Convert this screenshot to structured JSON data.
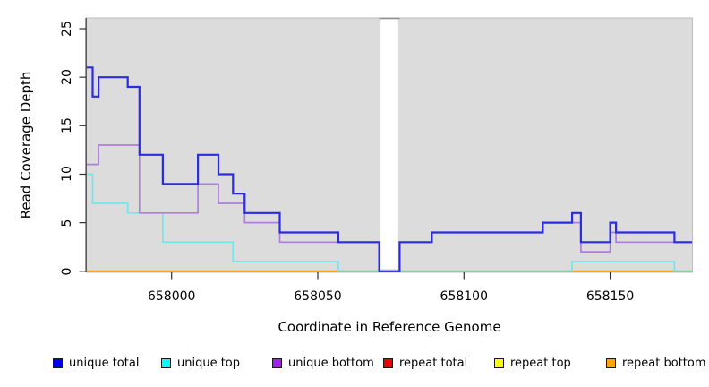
{
  "figure": {
    "xlabel": "Coordinate in Reference Genome",
    "ylabel": "Read Coverage Depth"
  },
  "chart_data": {
    "type": "line",
    "step": true,
    "title": "",
    "xlabel": "Coordinate in Reference Genome",
    "ylabel": "Read Coverage Depth",
    "xlim": [
      657971,
      658178
    ],
    "ylim": [
      0,
      26
    ],
    "grid": false,
    "plot_bg": "#dcdcdc",
    "zero_line_color": "#8ccb8c",
    "no_data_gap": {
      "from": 658071,
      "to": 658078
    },
    "x_ticks": [
      {
        "value": 658000,
        "label": "658000"
      },
      {
        "value": 658050,
        "label": "658050"
      },
      {
        "value": 658100,
        "label": "658100"
      },
      {
        "value": 658150,
        "label": "658150"
      }
    ],
    "y_ticks": [
      {
        "value": 0,
        "label": "0"
      },
      {
        "value": 5,
        "label": "5"
      },
      {
        "value": 10,
        "label": "10"
      },
      {
        "value": 15,
        "label": "15"
      },
      {
        "value": 20,
        "label": "20"
      },
      {
        "value": 25,
        "label": "25"
      }
    ],
    "series": [
      {
        "name": "unique total",
        "color": "#2b2bdf",
        "width": 2.2,
        "points": [
          [
            657971,
            21
          ],
          [
            657973,
            18
          ],
          [
            657975,
            20
          ],
          [
            657985,
            19
          ],
          [
            657989,
            12
          ],
          [
            657997,
            9
          ],
          [
            658009,
            12
          ],
          [
            658016,
            10
          ],
          [
            658021,
            8
          ],
          [
            658025,
            6
          ],
          [
            658037,
            4
          ],
          [
            658057,
            3
          ],
          [
            658071,
            0
          ],
          [
            658078,
            3
          ],
          [
            658089,
            4
          ],
          [
            658127,
            5
          ],
          [
            658137,
            6
          ],
          [
            658140,
            3
          ],
          [
            658150,
            5
          ],
          [
            658152,
            4
          ],
          [
            658172,
            3
          ],
          [
            658178,
            3
          ]
        ]
      },
      {
        "name": "unique top",
        "color": "#6fe8ec",
        "width": 1.7,
        "points": [
          [
            657971,
            10
          ],
          [
            657973,
            7
          ],
          [
            657985,
            6
          ],
          [
            657997,
            3
          ],
          [
            658021,
            1
          ],
          [
            658057,
            0
          ],
          [
            658137,
            1
          ],
          [
            658172,
            0
          ],
          [
            658178,
            0
          ]
        ]
      },
      {
        "name": "unique bottom",
        "color": "#ad7fda",
        "width": 1.7,
        "points": [
          [
            657971,
            11
          ],
          [
            657975,
            13
          ],
          [
            657989,
            6
          ],
          [
            658009,
            9
          ],
          [
            658016,
            7
          ],
          [
            658025,
            5
          ],
          [
            658037,
            3
          ],
          [
            658071,
            0
          ],
          [
            658078,
            3
          ],
          [
            658089,
            4
          ],
          [
            658127,
            5
          ],
          [
            658140,
            2
          ],
          [
            658150,
            4
          ],
          [
            658152,
            3
          ],
          [
            658178,
            3
          ]
        ]
      },
      {
        "name": "repeat total",
        "color": "#ee0000",
        "width": 1.5,
        "points": [
          [
            657971,
            0
          ],
          [
            658178,
            0
          ]
        ]
      },
      {
        "name": "repeat top",
        "color": "#ffff00",
        "width": 1.5,
        "points": [
          [
            657971,
            0
          ],
          [
            658178,
            0
          ]
        ]
      },
      {
        "name": "repeat bottom",
        "color": "#ffa216",
        "width": 2.2,
        "points": [
          [
            657971,
            0
          ],
          [
            658178,
            0
          ]
        ]
      }
    ]
  },
  "legend": {
    "items": [
      {
        "label": "unique total",
        "color": "#0000ee"
      },
      {
        "label": "unique top",
        "color": "#00ffff"
      },
      {
        "label": "unique bottom",
        "color": "#a020f0"
      },
      {
        "label": "repeat total",
        "color": "#ee0000"
      },
      {
        "label": "repeat top",
        "color": "#ffff00"
      },
      {
        "label": "repeat bottom",
        "color": "#ffa500"
      }
    ]
  }
}
